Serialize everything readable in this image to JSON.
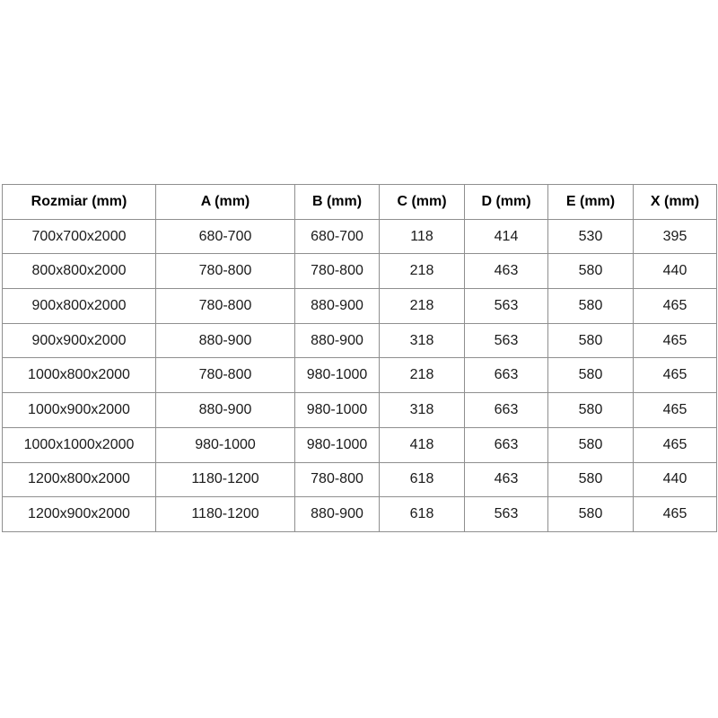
{
  "table": {
    "columns": [
      "Rozmiar (mm)",
      "A (mm)",
      "B (mm)",
      "C (mm)",
      "D (mm)",
      "E (mm)",
      "X (mm)"
    ],
    "rows": [
      [
        "700x700x2000",
        "680-700",
        "680-700",
        "118",
        "414",
        "530",
        "395"
      ],
      [
        "800x800x2000",
        "780-800",
        "780-800",
        "218",
        "463",
        "580",
        "440"
      ],
      [
        "900x800x2000",
        "780-800",
        "880-900",
        "218",
        "563",
        "580",
        "465"
      ],
      [
        "900x900x2000",
        "880-900",
        "880-900",
        "318",
        "563",
        "580",
        "465"
      ],
      [
        "1000x800x2000",
        "780-800",
        "980-1000",
        "218",
        "663",
        "580",
        "465"
      ],
      [
        "1000x900x2000",
        "880-900",
        "980-1000",
        "318",
        "663",
        "580",
        "465"
      ],
      [
        "1000x1000x2000",
        "980-1000",
        "980-1000",
        "418",
        "663",
        "580",
        "465"
      ],
      [
        "1200x800x2000",
        "1180-1200",
        "780-800",
        "618",
        "463",
        "580",
        "440"
      ],
      [
        "1200x900x2000",
        "1180-1200",
        "880-900",
        "618",
        "563",
        "580",
        "465"
      ]
    ],
    "colors": {
      "border": "#8f8f8f",
      "header_text": "#000000",
      "cell_text": "#1a1a1a",
      "background": "#ffffff"
    }
  }
}
